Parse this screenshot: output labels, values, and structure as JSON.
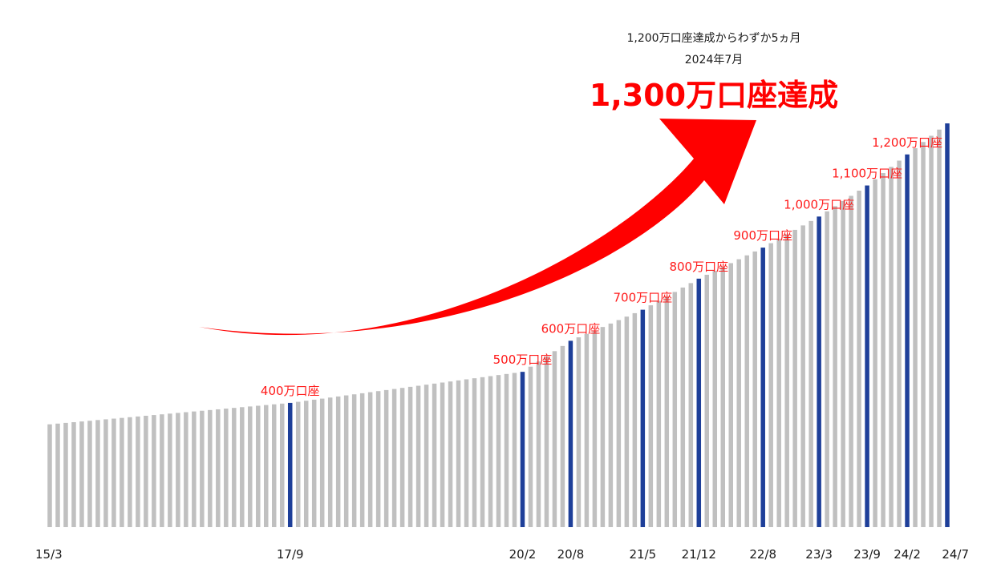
{
  "headline": {
    "line1": "1,200万口座達成からわずか5ヵ月",
    "line2": "2024年7月",
    "main": "1,300万口座達成"
  },
  "colors": {
    "bar": "#c0c0c0",
    "milestone_bar": "#1e3f99",
    "label": "#ff1a1a",
    "arrow": "#ff0000"
  },
  "chart_data": {
    "type": "bar",
    "title": "",
    "xlabel": "",
    "ylabel": "",
    "unit": "万口座",
    "period": [
      "2015-03",
      "2024-07"
    ],
    "bar_count": 113,
    "ylim": [
      0,
      1300
    ],
    "start_value": 331,
    "grid": false,
    "legend": "none",
    "x_tick_labels": [
      "15/3",
      "17/9",
      "20/2",
      "20/8",
      "21/5",
      "21/12",
      "22/8",
      "23/3",
      "23/9",
      "24/2",
      "24/7"
    ],
    "milestones": [
      {
        "date": "17/9",
        "value": 400,
        "label": "400万口座"
      },
      {
        "date": "20/2",
        "value": 500,
        "label": "500万口座"
      },
      {
        "date": "20/8",
        "value": 600,
        "label": "600万口座"
      },
      {
        "date": "21/5",
        "value": 700,
        "label": "700万口座"
      },
      {
        "date": "21/12",
        "value": 800,
        "label": "800万口座"
      },
      {
        "date": "22/8",
        "value": 900,
        "label": "900万口座"
      },
      {
        "date": "23/3",
        "value": 1000,
        "label": "1,000万口座"
      },
      {
        "date": "23/9",
        "value": 1100,
        "label": "1,100万口座"
      },
      {
        "date": "24/2",
        "value": 1200,
        "label": "1,200万口座"
      },
      {
        "date": "24/7",
        "value": 1300,
        "label": ""
      }
    ]
  }
}
